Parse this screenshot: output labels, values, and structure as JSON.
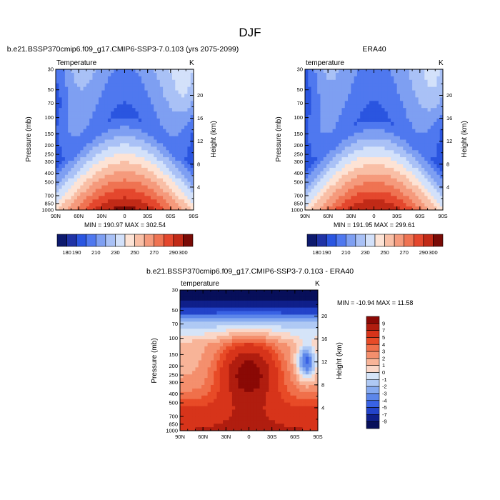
{
  "page": {
    "title": "DJF"
  },
  "panels": [
    {
      "title": "b.e21.BSSP370cmip6.f09_g17.CMIP6-SSP3-7.0.103 (yrs 2075-2099)",
      "left_label": "Temperature",
      "right_label": "K",
      "stats": "MIN = 190.97   MAX = 302.54"
    },
    {
      "title": "ERA40",
      "left_label": "temperature",
      "right_label": "K",
      "stats": "MIN = 191.95   MAX = 299.61"
    },
    {
      "title": "b.e21.BSSP370cmip6.f09_g17.CMIP6-SSP3-7.0.103 - ERA40",
      "left_label": "temperature",
      "right_label": "K",
      "stats": "MIN = -10.94   MAX =  11.58"
    }
  ],
  "chart_data": [
    {
      "type": "heatmap",
      "title": "b.e21.BSSP370cmip6.f09_g17.CMIP6-SSP3-7.0.103 (yrs 2075-2099)",
      "xlabel": "",
      "ylabel": "Pressure (mb)",
      "y2label": "Height (km)",
      "x_ticks": [
        "90N",
        "60N",
        "30N",
        "0",
        "30S",
        "60S",
        "90S"
      ],
      "y_ticks": [
        30,
        50,
        70,
        100,
        150,
        200,
        250,
        300,
        400,
        500,
        700,
        850,
        1000
      ],
      "y_scale": "log",
      "y2_ticks": [
        4,
        8,
        12,
        16,
        20
      ],
      "colorbar": {
        "levels": [
          180,
          190,
          200,
          210,
          220,
          230,
          240,
          250,
          260,
          270,
          280,
          290,
          300
        ],
        "labels": [
          "180",
          "190",
          "210",
          "230",
          "250",
          "270",
          "290",
          "300"
        ]
      },
      "min": 190.97,
      "max": 302.54
    },
    {
      "type": "heatmap",
      "title": "ERA40",
      "xlabel": "",
      "ylabel": "Pressure (mb)",
      "y2label": "Height (km)",
      "x_ticks": [
        "90N",
        "60N",
        "30N",
        "0",
        "30S",
        "60S",
        "90S"
      ],
      "y_ticks": [
        30,
        50,
        70,
        100,
        150,
        200,
        250,
        300,
        400,
        500,
        700,
        850,
        1000
      ],
      "y_scale": "log",
      "y2_ticks": [
        4,
        8,
        12,
        16,
        20
      ],
      "colorbar": {
        "levels": [
          180,
          190,
          200,
          210,
          220,
          230,
          240,
          250,
          260,
          270,
          280,
          290,
          300
        ],
        "labels": [
          "180",
          "190",
          "210",
          "230",
          "250",
          "270",
          "290",
          "300"
        ]
      },
      "min": 191.95,
      "max": 299.61
    },
    {
      "type": "heatmap",
      "title": "b.e21.BSSP370cmip6.f09_g17.CMIP6-SSP3-7.0.103 - ERA40",
      "xlabel": "",
      "ylabel": "Pressure (mb)",
      "y2label": "Height (km)",
      "x_ticks": [
        "90N",
        "60N",
        "30N",
        "0",
        "30S",
        "60S",
        "90S"
      ],
      "y_ticks": [
        30,
        50,
        70,
        100,
        150,
        200,
        250,
        300,
        400,
        500,
        700,
        850,
        1000
      ],
      "y_scale": "log",
      "y2_ticks": [
        4,
        8,
        12,
        16,
        20
      ],
      "colorbar": {
        "labels": [
          "9",
          "7",
          "5",
          "4",
          "3",
          "2",
          "1",
          "0",
          "-1",
          "-2",
          "-3",
          "-4",
          "-5",
          "-7",
          "-9"
        ]
      },
      "min": -10.94,
      "max": 11.58
    }
  ],
  "colors": {
    "temperature_scale": [
      "#0d1a6e",
      "#1f33a6",
      "#2a55e0",
      "#4f78ef",
      "#7e9ff2",
      "#a9c1f6",
      "#d3e1fa",
      "#fde3d5",
      "#f9bfa6",
      "#f59a7c",
      "#ef7352",
      "#e4472d",
      "#c12a17",
      "#7a0b06"
    ],
    "difference_scale": [
      "#8a0905",
      "#b01d0f",
      "#d7341a",
      "#e84b27",
      "#f0704b",
      "#f48f6d",
      "#f8b498",
      "#fad7c8",
      "#d5e4f8",
      "#afc9f4",
      "#86aaf0",
      "#5c86ea",
      "#3962e4",
      "#2343c9",
      "#0f1f8a",
      "#070f5a"
    ]
  }
}
